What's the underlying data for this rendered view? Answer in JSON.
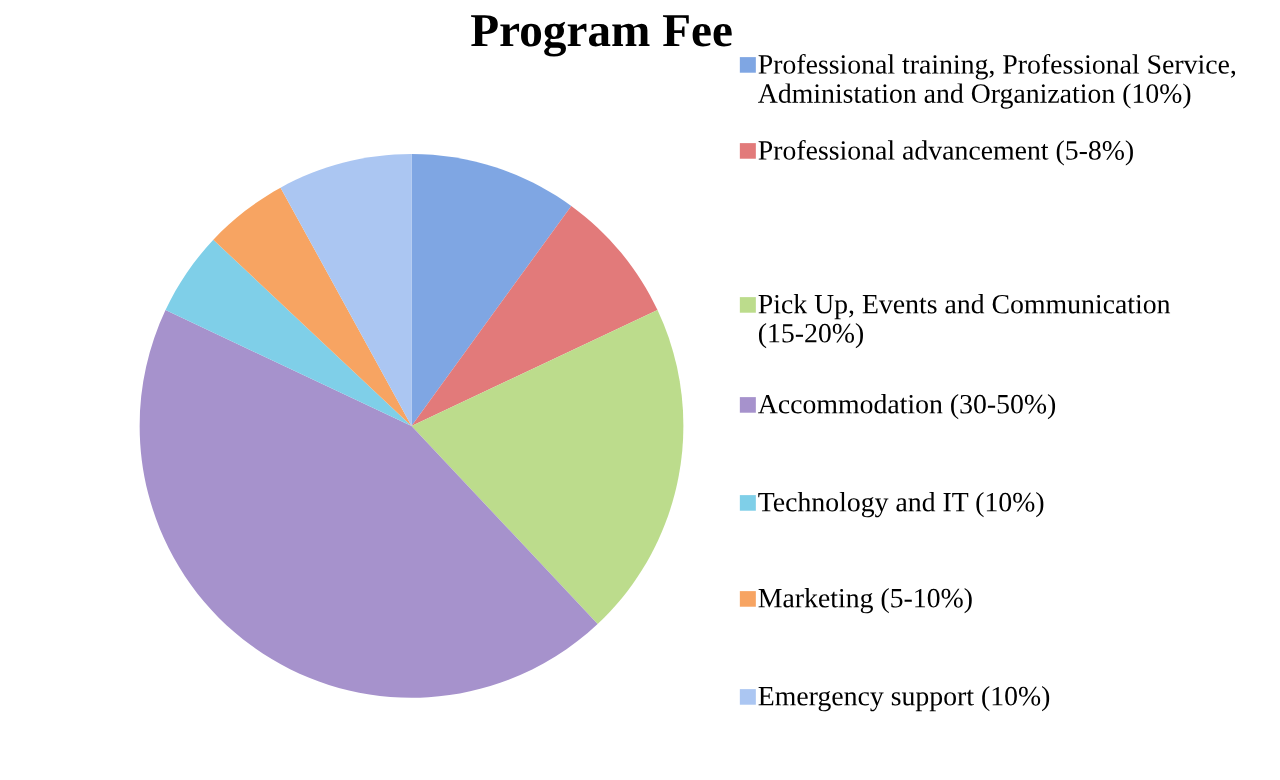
{
  "chart_data": {
    "type": "pie",
    "title": "Program Fee",
    "categories": [
      "Professional training, Professional Service, Administation and Organization (10%)",
      "Professional advancement (5-8%)",
      "Pick Up, Events and Communication (15-20%)",
      "Accommodation (30-50%)",
      "Technology and IT (10%)",
      "Marketing (5-10%)",
      "Emergency support (10%)"
    ],
    "values": [
      10,
      8,
      20,
      44,
      5,
      5,
      8
    ],
    "colors": [
      "#7fa6e3",
      "#e27a7a",
      "#bcdc8c",
      "#a692cc",
      "#7fcfe8",
      "#f7a462",
      "#abc6f2"
    ],
    "legend": "right"
  }
}
